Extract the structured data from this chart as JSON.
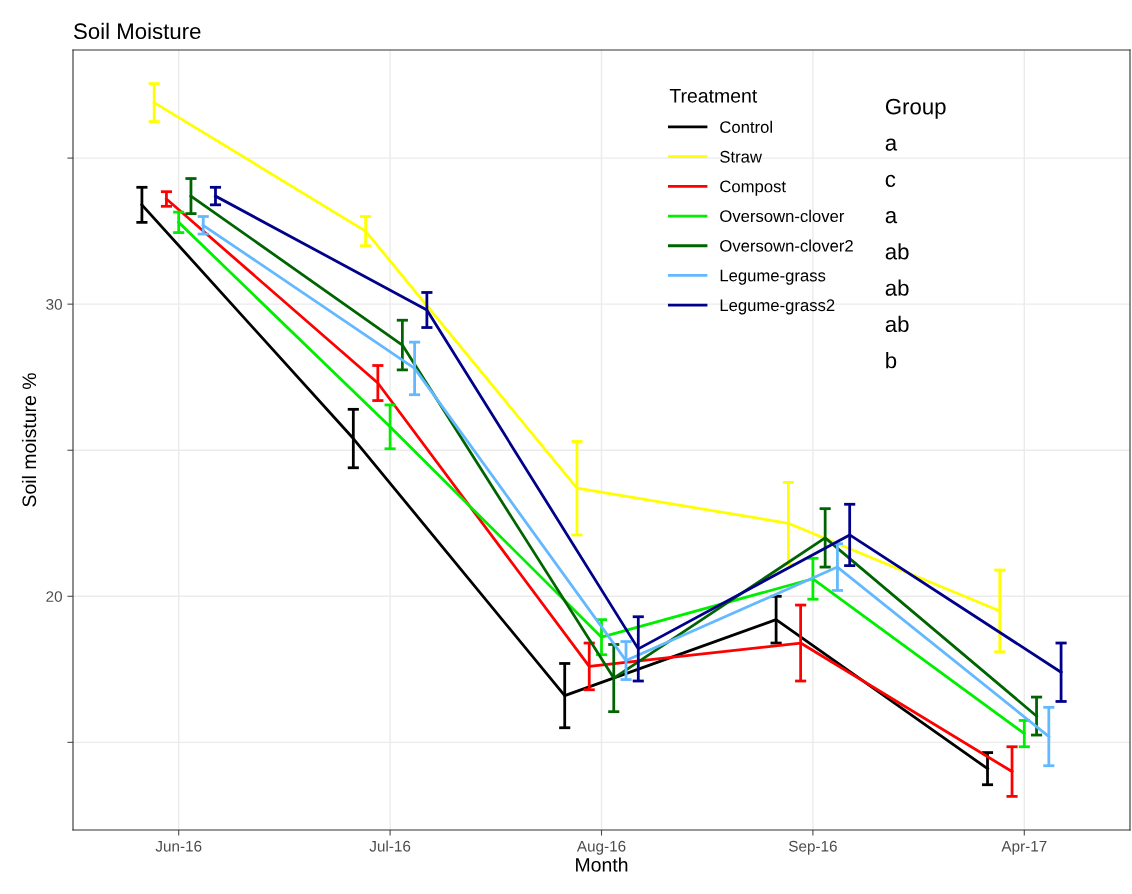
{
  "chart_data": {
    "type": "line",
    "title": "Soil Moisture",
    "xlabel": "Month",
    "ylabel": "Soil moisture %",
    "legend_title": "Treatment",
    "categories": [
      "Jun-16",
      "Jul-16",
      "Aug-16",
      "Sep-16",
      "Apr-17"
    ],
    "ylim": [
      12.0,
      38.7
    ],
    "yticks": [
      {
        "value": 15,
        "label": null
      },
      20,
      {
        "value": 25,
        "label": null
      },
      30,
      {
        "value": 35,
        "label": null
      }
    ],
    "grid": true,
    "legend": "top right",
    "marker": "none",
    "line_style": "solid",
    "series": [
      {
        "name": "Control",
        "color": "#000000",
        "values": [
          33.4,
          25.4,
          16.6,
          19.2,
          14.1
        ],
        "errors": [
          0.6,
          1.0,
          1.1,
          0.8,
          0.55
        ]
      },
      {
        "name": "Straw",
        "color": "#ffff00",
        "values": [
          36.9,
          32.5,
          23.7,
          22.5,
          19.5
        ],
        "errors": [
          0.65,
          0.5,
          1.6,
          1.4,
          1.4
        ]
      },
      {
        "name": "Compost",
        "color": "#ff0000",
        "values": [
          33.6,
          27.3,
          17.6,
          18.4,
          14.0
        ],
        "errors": [
          0.25,
          0.6,
          0.8,
          1.3,
          0.85
        ]
      },
      {
        "name": "Oversown-clover",
        "color": "#00ee00",
        "values": [
          32.8,
          25.8,
          18.6,
          20.6,
          15.3
        ],
        "errors": [
          0.35,
          0.75,
          0.6,
          0.7,
          0.45
        ]
      },
      {
        "name": "Oversown-clover2",
        "color": "#006400",
        "values": [
          33.7,
          28.6,
          17.2,
          22.0,
          15.9
        ],
        "errors": [
          0.6,
          0.85,
          1.15,
          1.0,
          0.65
        ]
      },
      {
        "name": "Legume-grass",
        "color": "#63b8ff",
        "values": [
          32.7,
          27.8,
          17.8,
          21.0,
          15.2
        ],
        "errors": [
          0.3,
          0.9,
          0.65,
          0.8,
          1.0
        ]
      },
      {
        "name": "Legume-grass2",
        "color": "#00008b",
        "values": [
          33.7,
          29.8,
          18.2,
          22.1,
          17.4
        ],
        "errors": [
          0.3,
          0.6,
          1.1,
          1.05,
          1.0
        ]
      }
    ],
    "annotations": [
      "Group",
      "a",
      "c",
      "a",
      "ab",
      "ab",
      "ab",
      "b"
    ]
  }
}
